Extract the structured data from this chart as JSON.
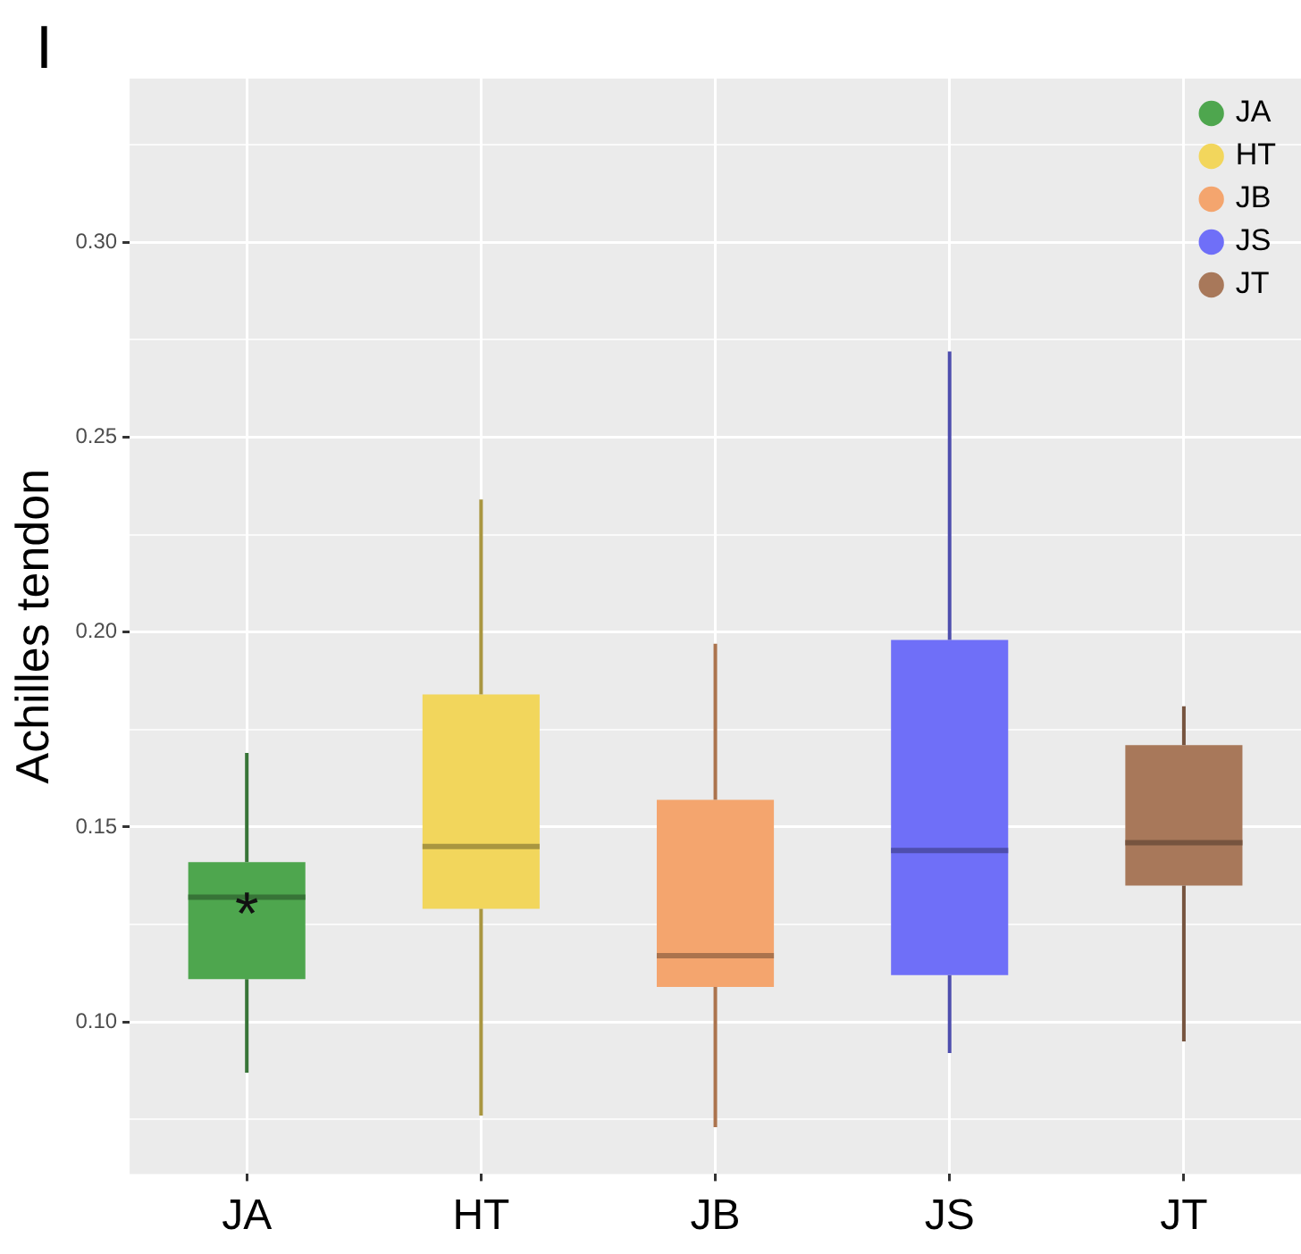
{
  "chart_data": {
    "type": "box",
    "title": "I",
    "ylabel": "Achilles tendon",
    "categories": [
      "JA",
      "HT",
      "JB",
      "JS",
      "JT"
    ],
    "series": [
      {
        "name": "JA",
        "color": "#4ea64e",
        "boxes": [
          {
            "low": 0.087,
            "q1": 0.111,
            "median": 0.132,
            "q3": 0.141,
            "high": 0.169
          },
          null,
          null,
          null,
          null
        ]
      },
      {
        "name": "HT",
        "color": "#f2d65c",
        "boxes": [
          null,
          {
            "low": 0.076,
            "q1": 0.129,
            "median": 0.145,
            "q3": 0.184,
            "high": 0.234
          },
          null,
          null,
          null
        ]
      },
      {
        "name": "JB",
        "color": "#f4a56e",
        "boxes": [
          null,
          null,
          {
            "low": 0.073,
            "q1": 0.109,
            "median": 0.117,
            "q3": 0.157,
            "high": 0.197
          },
          null,
          null
        ]
      },
      {
        "name": "JS",
        "color": "#6f6ff8",
        "boxes": [
          null,
          null,
          null,
          {
            "low": 0.092,
            "q1": 0.112,
            "median": 0.144,
            "q3": 0.198,
            "high": 0.272
          },
          null
        ]
      },
      {
        "name": "JT",
        "color": "#a8785a",
        "boxes": [
          null,
          null,
          null,
          null,
          {
            "low": 0.095,
            "q1": 0.135,
            "median": 0.146,
            "q3": 0.171,
            "high": 0.181
          }
        ]
      }
    ],
    "ylim": [
      0.061,
      0.342
    ],
    "yticks": [
      {
        "value": 0.075,
        "label": null
      },
      {
        "value": 0.1,
        "label": "0.10"
      },
      {
        "value": 0.125,
        "label": null
      },
      {
        "value": 0.15,
        "label": "0.15"
      },
      {
        "value": 0.175,
        "label": null
      },
      {
        "value": 0.2,
        "label": "0.20"
      },
      {
        "value": 0.225,
        "label": null
      },
      {
        "value": 0.25,
        "label": "0.25"
      },
      {
        "value": 0.275,
        "label": null
      },
      {
        "value": 0.3,
        "label": "0.30"
      },
      {
        "value": 0.325,
        "label": null
      }
    ],
    "annotations": [
      {
        "text": "*",
        "x": "JA",
        "y": 0.131
      }
    ],
    "grid": true,
    "legend": "top right"
  }
}
